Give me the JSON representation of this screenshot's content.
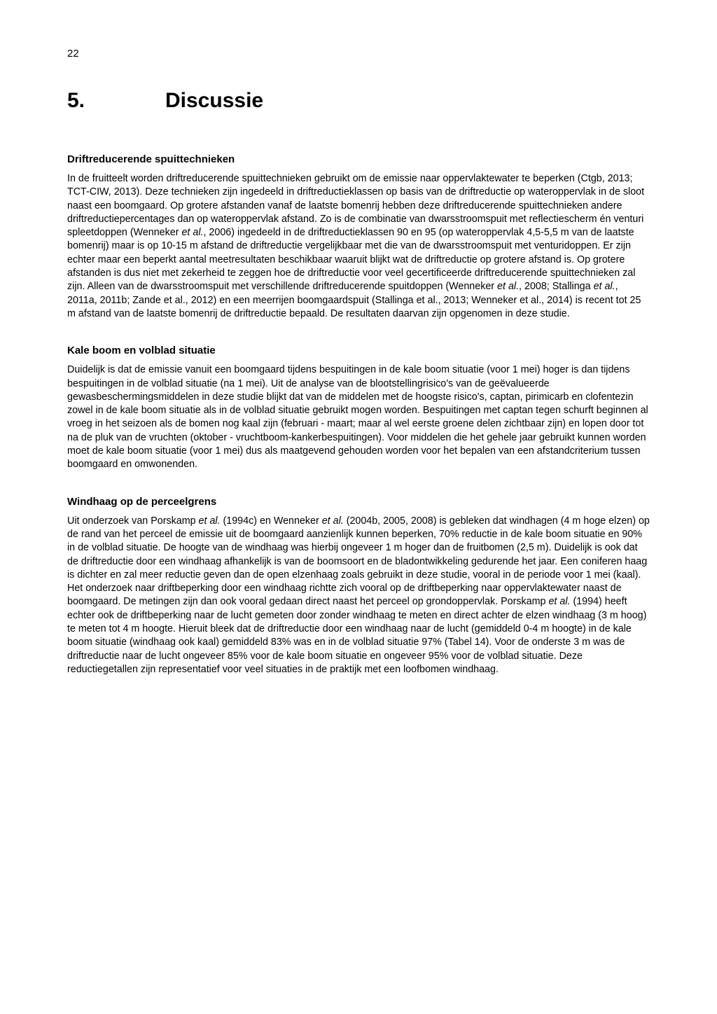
{
  "page_number": "22",
  "chapter": {
    "number": "5.",
    "title": "Discussie"
  },
  "sections": [
    {
      "title": "Driftreducerende spuittechnieken",
      "body_html": "In de fruitteelt worden driftreducerende spuittechnieken gebruikt om de emissie naar oppervlaktewater te beperken (Ctgb, 2013; TCT-CIW, 2013). Deze technieken zijn ingedeeld in driftreductieklassen op basis van de driftreductie op wateroppervlak in de sloot naast een boomgaard. Op grotere afstanden vanaf de laatste bomenrij hebben deze driftreducerende spuittechnieken andere driftreductiepercentages dan op wateroppervlak afstand. Zo is de combinatie van dwarsstroomspuit met reflectiescherm én venturi spleetdoppen (Wenneker <span class=\"italic\">et al.</span>, 2006) ingedeeld in de driftreductieklassen 90 en 95 (op wateroppervlak 4,5-5,5 m van de laatste bomenrij) maar is op 10-15 m afstand de driftreductie vergelijkbaar met die van de dwarsstroomspuit met venturidoppen. Er zijn echter maar een beperkt aantal meetresultaten beschikbaar waaruit blijkt wat de driftreductie op grotere afstand is. Op grotere afstanden is dus niet met zekerheid te zeggen hoe de driftreductie voor veel gecertificeerde driftreducerende spuittechnieken zal zijn. Alleen van de dwarsstroomspuit met verschillende driftreducerende spuitdoppen  (Wenneker <span class=\"italic\">et al.</span>, 2008; Stallinga <span class=\"italic\">et al.</span>, 2011a, 2011b; Zande et al., 2012) en een meerrijen boomgaardspuit (Stallinga et al., 2013; Wenneker et al., 2014) is recent tot 25 m afstand van de laatste bomenrij de driftreductie bepaald. De resultaten daarvan zijn opgenomen in deze studie."
    },
    {
      "title": "Kale boom en volblad situatie",
      "body_html": "Duidelijk is dat de emissie vanuit een boomgaard tijdens bespuitingen in de kale boom situatie (voor 1 mei) hoger is dan tijdens bespuitingen in de volblad situatie (na 1 mei). Uit de analyse van de blootstellingrisico's van de geëvalueerde gewasbeschermingsmiddelen in deze studie blijkt dat van de middelen met de hoogste risico's, captan, pirimicarb en clofentezin zowel in de kale boom situatie als in de volblad situatie gebruikt mogen worden. Bespuitingen met captan tegen schurft beginnen al vroeg in het seizoen als de bomen nog kaal zijn (februari - maart; maar al wel eerste groene delen zichtbaar zijn) en lopen door tot na de pluk van de vruchten (oktober - vruchtboom-kankerbespuitingen). Voor middelen die het gehele jaar gebruikt kunnen worden moet de kale boom situatie (voor 1 mei) dus als maatgevend gehouden worden voor het bepalen van een afstandcriterium tussen boomgaard en omwonenden."
    },
    {
      "title": "Windhaag op de perceelgrens",
      "body_html": "Uit onderzoek van Porskamp <span class=\"italic\">et al.</span> (1994c) en Wenneker <span class=\"italic\">et al.</span> (2004b, 2005, 2008) is gebleken dat windhagen (4 m hoge elzen) op de rand van het perceel de emissie uit de boomgaard aanzienlijk kunnen beperken, 70% reductie in de kale boom situatie en 90% in de volblad situatie. De hoogte van de windhaag was hierbij ongeveer 1 m hoger dan de fruitbomen (2,5 m). Duidelijk is ook dat de driftreductie door een windhaag afhankelijk is van de boomsoort en de bladontwikkeling gedurende het jaar. Een coniferen haag is dichter en zal meer reductie geven dan de open elzenhaag zoals gebruikt in deze studie, vooral in de periode voor 1 mei (kaal). Het onderzoek naar driftbeperking door een windhaag richtte zich vooral op de driftbeperking naar oppervlaktewater naast de boomgaard. De metingen zijn dan ook vooral gedaan direct naast het perceel op grondoppervlak. Porskamp <span class=\"italic\">et al.</span> (1994) heeft echter ook de driftbeperking naar de lucht gemeten door zonder windhaag te meten en direct achter de elzen windhaag (3 m hoog) te meten tot 4 m hoogte. Hieruit bleek dat de driftreductie door een windhaag naar de lucht (gemiddeld 0-4 m hoogte) in de kale boom situatie (windhaag ook kaal) gemiddeld 83% was en in de volblad situatie 97% (Tabel 14). Voor de onderste 3 m was de driftreductie naar de lucht ongeveer 85% voor de kale boom situatie en ongeveer 95% voor de volblad situatie. Deze reductiegetallen zijn representatief voor veel situaties in de praktijk met een loofbomen windhaag."
    }
  ]
}
